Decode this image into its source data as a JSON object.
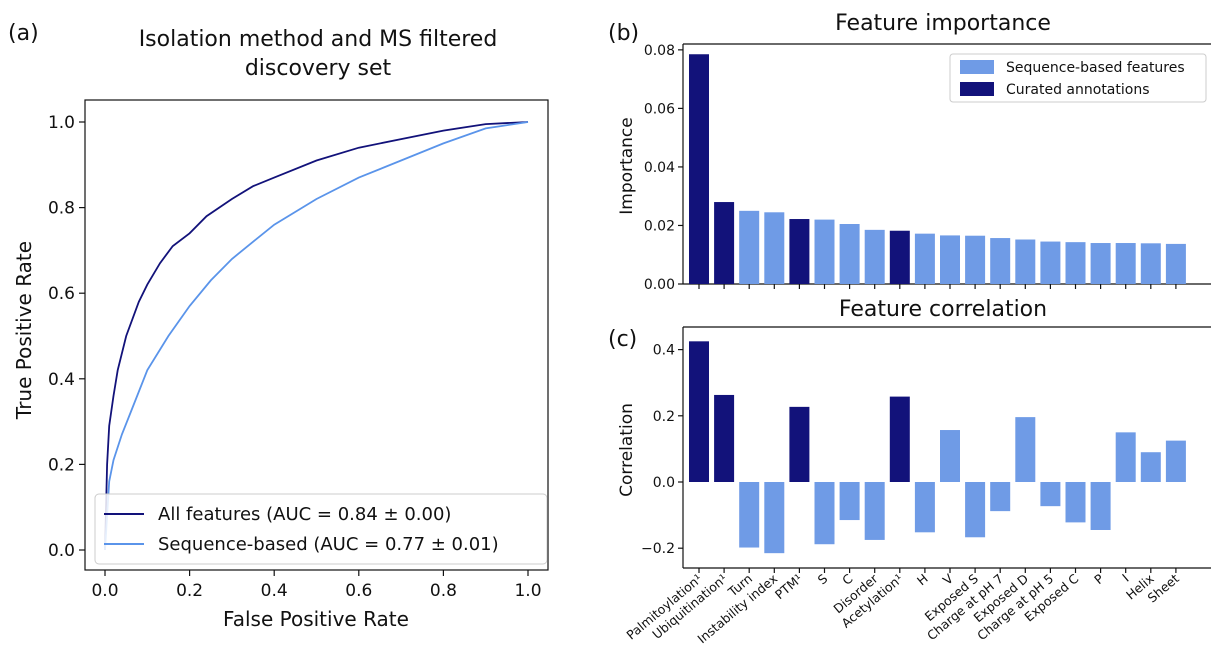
{
  "panel_labels": {
    "a": "(a)",
    "b": "(b)",
    "c": "(c)"
  },
  "colors": {
    "dark": "#12127a",
    "light": "#6f9be6",
    "roc_light": "#5a94ea"
  },
  "chart_data": [
    {
      "type": "line",
      "title_line1": "Isolation method and MS filtered",
      "title_line2": "discovery set",
      "xlabel": "False Positive Rate",
      "ylabel": "True Positive Rate",
      "xlim": [
        0,
        1
      ],
      "ylim": [
        0,
        1
      ],
      "xticks": [
        "0.0",
        "0.2",
        "0.4",
        "0.6",
        "0.8",
        "1.0"
      ],
      "yticks": [
        "0.0",
        "0.2",
        "0.4",
        "0.6",
        "0.8",
        "1.0"
      ],
      "legend_position": "bottom-right",
      "series": [
        {
          "name": "All features (AUC = 0.84 ± 0.00)",
          "color": "#12127a",
          "x": [
            0,
            0.005,
            0.01,
            0.02,
            0.03,
            0.05,
            0.08,
            0.1,
            0.13,
            0.16,
            0.2,
            0.24,
            0.3,
            0.35,
            0.4,
            0.5,
            0.6,
            0.7,
            0.8,
            0.9,
            1.0
          ],
          "y": [
            0,
            0.2,
            0.29,
            0.36,
            0.42,
            0.5,
            0.58,
            0.62,
            0.67,
            0.71,
            0.74,
            0.78,
            0.82,
            0.85,
            0.87,
            0.91,
            0.94,
            0.96,
            0.98,
            0.995,
            1.0
          ]
        },
        {
          "name": "Sequence-based (AUC = 0.77 ± 0.01)",
          "color": "#5a94ea",
          "x": [
            0,
            0.01,
            0.02,
            0.04,
            0.06,
            0.1,
            0.15,
            0.2,
            0.25,
            0.3,
            0.35,
            0.4,
            0.5,
            0.6,
            0.7,
            0.8,
            0.9,
            1.0
          ],
          "y": [
            0,
            0.16,
            0.21,
            0.27,
            0.32,
            0.42,
            0.5,
            0.57,
            0.63,
            0.68,
            0.72,
            0.76,
            0.82,
            0.87,
            0.91,
            0.95,
            0.985,
            1.0
          ]
        }
      ]
    },
    {
      "type": "bar",
      "title": "Feature importance",
      "ylabel": "Importance",
      "ylim": [
        0,
        0.082
      ],
      "yticks": [
        "0.00",
        "0.02",
        "0.04",
        "0.06",
        "0.08"
      ],
      "legend_position": "top-right",
      "legend": [
        {
          "name": "Sequence-based features",
          "color": "#6f9be6"
        },
        {
          "name": "Curated annotations",
          "color": "#12127a"
        }
      ],
      "categories": [
        "Palmitoylation¹",
        "Ubiquitination¹",
        "Turn",
        "Instability index",
        "PTM¹",
        "S",
        "C",
        "Disorder",
        "Acetylation¹",
        "H",
        "V",
        "Exposed S",
        "Charge at pH 7",
        "Exposed D",
        "Charge at pH 5",
        "Exposed C",
        "P",
        "I",
        "Helix",
        "Sheet"
      ],
      "curated": [
        true,
        true,
        false,
        false,
        true,
        false,
        false,
        false,
        true,
        false,
        false,
        false,
        false,
        false,
        false,
        false,
        false,
        false,
        false,
        false
      ],
      "values": [
        0.0785,
        0.028,
        0.025,
        0.0245,
        0.0222,
        0.022,
        0.0205,
        0.0185,
        0.0182,
        0.0172,
        0.0166,
        0.0165,
        0.0157,
        0.0152,
        0.0145,
        0.0143,
        0.014,
        0.014,
        0.0139,
        0.0137
      ]
    },
    {
      "type": "bar",
      "title": "Feature correlation",
      "ylabel": "Correlation",
      "ylim": [
        -0.25,
        0.43
      ],
      "yticks": [
        "−0.2",
        "0.0",
        "0.2",
        "0.4"
      ],
      "categories": [
        "Palmitoylation¹",
        "Ubiquitination¹",
        "Turn",
        "Instability index",
        "PTM¹",
        "S",
        "C",
        "Disorder",
        "Acetylation¹",
        "H",
        "V",
        "Exposed S",
        "Charge at pH 7",
        "Exposed D",
        "Charge at pH 5",
        "Exposed C",
        "P",
        "I",
        "Helix",
        "Sheet"
      ],
      "curated": [
        true,
        true,
        false,
        false,
        true,
        false,
        false,
        false,
        true,
        false,
        false,
        false,
        false,
        false,
        false,
        false,
        false,
        false,
        false,
        false
      ],
      "values": [
        0.425,
        0.263,
        -0.198,
        -0.215,
        0.227,
        -0.188,
        -0.115,
        -0.175,
        0.258,
        -0.152,
        0.157,
        -0.167,
        -0.088,
        0.196,
        -0.073,
        -0.122,
        -0.145,
        0.15,
        0.09,
        0.125
      ]
    }
  ]
}
